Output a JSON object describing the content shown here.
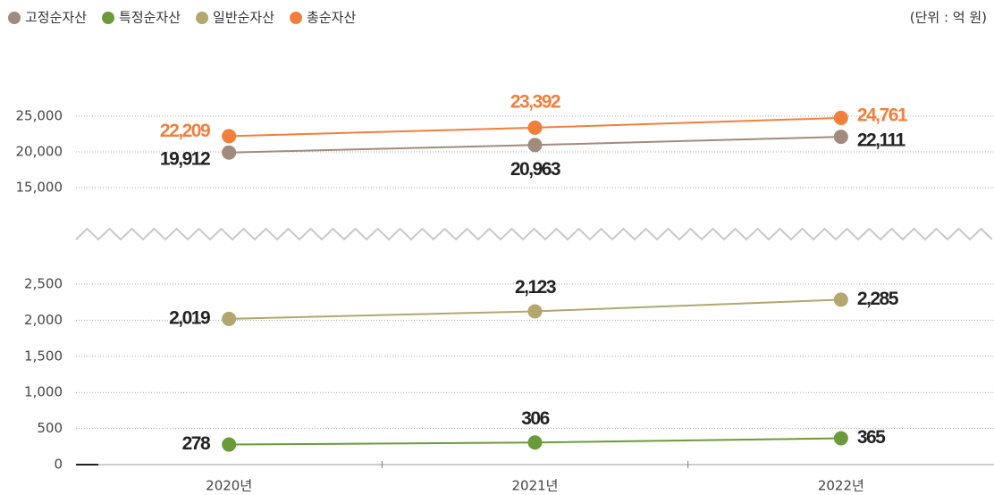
{
  "chart_data": {
    "type": "line",
    "unit": "(단위 : 억 원)",
    "categories": [
      "2020년",
      "2021년",
      "2022년"
    ],
    "ylim": [
      0,
      2750
    ],
    "yticks": [
      0,
      500,
      {
        "value": 1000,
        "label": "1,000"
      },
      {
        "value": 1500,
        "label": "1,500"
      },
      {
        "value": 2000,
        "label": "2,000"
      },
      {
        "value": 2500,
        "label": "2,500"
      }
    ],
    "y2lim": [
      15000,
      27500
    ],
    "y2ticks": [
      {
        "value": 15000,
        "label": "15,000"
      },
      {
        "value": 20000,
        "label": "20,000"
      },
      {
        "value": 25000,
        "label": "25,000"
      }
    ],
    "grid": true,
    "series": [
      {
        "name": "고정순자산",
        "color": "#a18b7d",
        "label_color": "#222",
        "axis": "y2",
        "values": [
          19912,
          20963,
          22111
        ],
        "value_labels": [
          "19,912",
          "20,963",
          "22,111"
        ]
      },
      {
        "name": "특정순자산",
        "color": "#6b9a3a",
        "label_color": "#222",
        "values": [
          278,
          306,
          365
        ]
      },
      {
        "name": "일반순자산",
        "color": "#b1a76f",
        "label_color": "#222",
        "values": [
          2019,
          2123,
          2285
        ],
        "value_labels": [
          "2,019",
          "2,123",
          "2,285"
        ]
      },
      {
        "name": "총순자산",
        "color": "#f07f3c",
        "label_color": "#f07f3c",
        "axis": "y2",
        "values": [
          22209,
          23392,
          24761
        ],
        "value_labels": [
          "22,209",
          "23,392",
          "24,761"
        ]
      }
    ]
  }
}
